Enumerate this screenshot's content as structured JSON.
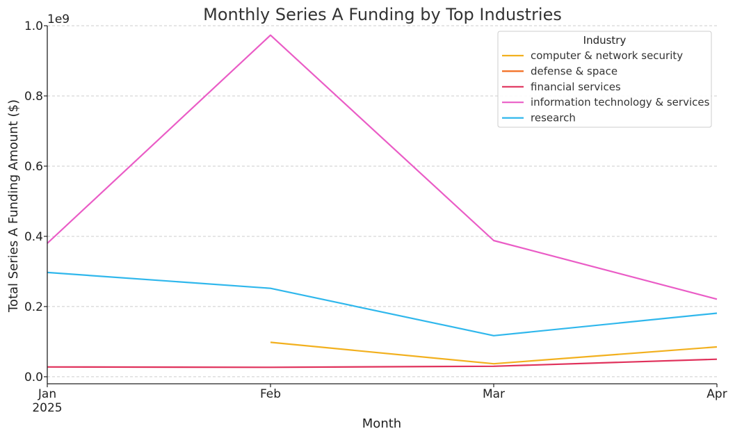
{
  "chart_data": {
    "type": "line",
    "title": "Monthly Series A Funding by Top Industries",
    "xlabel": "Month",
    "ylabel": "Total Series A Funding Amount ($)",
    "y_offset_label": "1e9",
    "x": [
      "2025-01",
      "2025-02",
      "2025-03",
      "2025-04"
    ],
    "x_tick_labels": [
      "Jan",
      "Feb",
      "Mar",
      "Apr"
    ],
    "x_tick_sublabel": "2025",
    "y_ticks": [
      "0.0",
      "0.2",
      "0.4",
      "0.6",
      "0.8",
      "1.0"
    ],
    "ylim": [
      -0.02,
      1.0
    ],
    "grid": true,
    "legend_title": "Industry",
    "legend_position": "top-right",
    "series": [
      {
        "name": "computer & network security",
        "color": "#f2b01e",
        "values": [
          null,
          0.098,
          0.037,
          0.085
        ]
      },
      {
        "name": "defense & space",
        "color": "#f26b1d",
        "values": [
          null,
          null,
          null,
          null
        ]
      },
      {
        "name": "financial services",
        "color": "#e0315b",
        "values": [
          0.028,
          0.027,
          0.03,
          0.05
        ]
      },
      {
        "name": "information technology & services",
        "color": "#ea5cc6",
        "values": [
          0.38,
          0.973,
          0.388,
          0.221
        ]
      },
      {
        "name": "research",
        "color": "#2fb7ec",
        "values": [
          0.297,
          0.252,
          0.117,
          0.181
        ]
      }
    ]
  }
}
